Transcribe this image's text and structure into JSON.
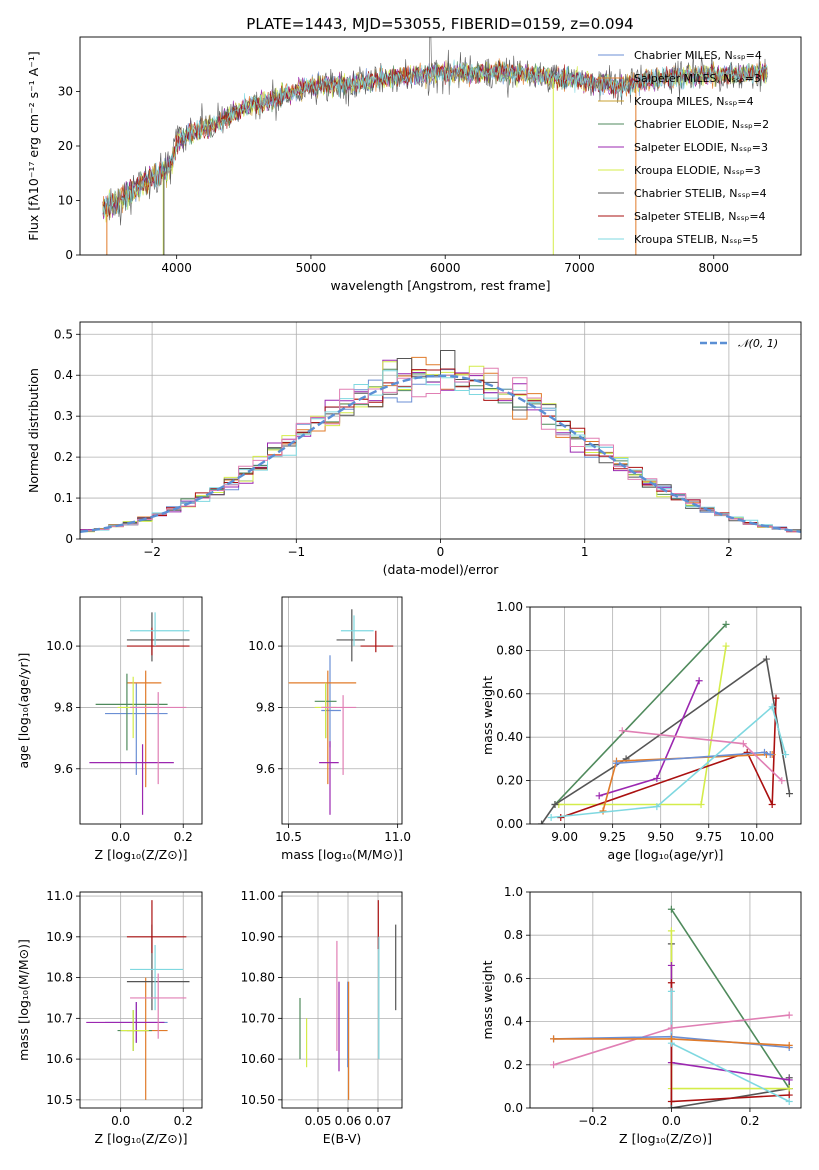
{
  "title": "PLATE=1443, MJD=53055, FIBERID=0159, z=0.094",
  "colors": [
    "#6b8fd4",
    "#e07b2a",
    "#4f8a5c",
    "#9b27b0",
    "#d4ec4a",
    "#555555",
    "#aa1010",
    "#7fd8e0",
    "#e07fb4",
    "#c8a030"
  ],
  "chart_data": [
    {
      "id": "spectrum",
      "type": "line",
      "xlabel": "wavelength [Angstrom, rest frame]",
      "ylabel": "Flux [fλ10⁻¹⁷ erg cm⁻² s⁻¹ A⁻¹]",
      "xlim": [
        3280,
        8650
      ],
      "ylim": [
        0,
        40
      ],
      "xticks": [
        4000,
        5000,
        6000,
        7000,
        8000
      ],
      "yticks": [
        0,
        10,
        20,
        30
      ],
      "continuum": {
        "x": [
          3450,
          3600,
          3800,
          3950,
          4000,
          4100,
          4300,
          4500,
          4700,
          5000,
          5300,
          5600,
          6000,
          6500,
          7000,
          7300,
          7600,
          8000,
          8400
        ],
        "y": [
          8.5,
          10.5,
          14,
          16,
          20.5,
          22.5,
          24,
          27,
          28.5,
          31,
          31.5,
          32.5,
          33.5,
          33.5,
          32,
          31,
          32.5,
          33,
          33.5
        ]
      },
      "legend": [
        "Chabrier MILES, Nₛₛₚ=4",
        "Salpeter MILES, Nₛₛₚ=3",
        "Kroupa MILES, Nₛₛₚ=4",
        "Chabrier ELODIE, Nₛₛₚ=2",
        "Salpeter ELODIE, Nₛₛₚ=3",
        "Kroupa ELODIE, Nₛₛₚ=3",
        "Chabrier STELIB, Nₛₛₚ=4",
        "Salpeter STELIB, Nₛₛₚ=4",
        "Kroupa STELIB, Nₛₛₚ=5"
      ],
      "legend_colors": [
        "#6b8fd4",
        "#e07b2a",
        "#c8a030",
        "#4f8a5c",
        "#9b27b0",
        "#d4ec4a",
        "#555555",
        "#aa1010",
        "#7fd8e0"
      ],
      "legend_position": "top-right",
      "grid": false
    },
    {
      "id": "residuals",
      "type": "histogram",
      "xlabel": "(data-model)/error",
      "ylabel": "Normed distribution",
      "xlim": [
        -2.5,
        2.5
      ],
      "ylim": [
        0,
        0.53
      ],
      "xticks": [
        -2,
        -1,
        0,
        1,
        2
      ],
      "yticks": [
        0.0,
        0.1,
        0.2,
        0.3,
        0.4,
        0.5
      ],
      "bin_width": 0.1,
      "reference_curve": "N(0,1)",
      "legend": [
        "𝒩(0, 1)"
      ],
      "legend_position": "top-right",
      "grid": true
    },
    {
      "id": "age-vs-Z",
      "type": "errorbar",
      "xlabel": "Z [log₁₀(Z/Z⊙)]",
      "ylabel": "age  [log₁₀(age/yr)]",
      "xlim": [
        -0.13,
        0.26
      ],
      "ylim": [
        9.42,
        10.16
      ],
      "xticks": [
        0.0,
        0.2
      ],
      "yticks": [
        9.6,
        9.8,
        10.0
      ],
      "grid": true
    },
    {
      "id": "age-vs-mass",
      "type": "errorbar",
      "xlabel": "mass [log₁₀(M/M⊙)]",
      "xlim": [
        10.47,
        11.02
      ],
      "ylim": [
        9.42,
        10.16
      ],
      "xticks": [
        10.5,
        11.0
      ],
      "yticks": [
        9.6,
        9.8,
        10.0
      ],
      "grid": true
    },
    {
      "id": "weight-vs-age",
      "type": "line",
      "xlabel": "age  [log₁₀(age/yr)]",
      "ylabel": "mass weight",
      "xlim": [
        8.82,
        10.23
      ],
      "ylim": [
        0,
        1
      ],
      "xticks": [
        9.0,
        9.25,
        9.5,
        9.75,
        10.0
      ],
      "yticks": [
        0.0,
        0.2,
        0.4,
        0.6,
        0.8,
        1.0
      ],
      "grid": true,
      "series": [
        {
          "color": "#4f8a5c",
          "x": [
            8.95,
            9.84
          ],
          "y": [
            0.09,
            0.92
          ]
        },
        {
          "color": "#d4ec4a",
          "x": [
            8.97,
            9.71,
            9.84
          ],
          "y": [
            0.09,
            0.09,
            0.82
          ]
        },
        {
          "color": "#555555",
          "x": [
            8.88,
            8.95,
            9.32,
            10.05,
            10.17
          ],
          "y": [
            0.0,
            0.09,
            0.3,
            0.76,
            0.14
          ]
        },
        {
          "color": "#9b27b0",
          "x": [
            9.18,
            9.48,
            9.7
          ],
          "y": [
            0.13,
            0.21,
            0.66
          ]
        },
        {
          "color": "#aa1010",
          "x": [
            8.98,
            9.95,
            10.08,
            10.1
          ],
          "y": [
            0.03,
            0.33,
            0.09,
            0.58
          ]
        },
        {
          "color": "#e07b2a",
          "x": [
            9.2,
            9.27,
            10.05,
            10.08
          ],
          "y": [
            0.06,
            0.29,
            0.32,
            0.32
          ]
        },
        {
          "color": "#6b8fd4",
          "x": [
            9.27,
            10.04,
            10.07
          ],
          "y": [
            0.28,
            0.33,
            0.32
          ]
        },
        {
          "color": "#7fd8e0",
          "x": [
            8.93,
            9.48,
            10.08,
            10.15
          ],
          "y": [
            0.03,
            0.08,
            0.54,
            0.32
          ]
        },
        {
          "color": "#e07fb4",
          "x": [
            9.3,
            9.93,
            10.13
          ],
          "y": [
            0.43,
            0.37,
            0.2
          ]
        }
      ]
    },
    {
      "id": "mass-vs-Z",
      "type": "errorbar",
      "xlabel": "Z [log₁₀(Z/Z⊙)]",
      "ylabel": "mass [log₁₀(M/M⊙)]",
      "xlim": [
        -0.13,
        0.26
      ],
      "ylim": [
        10.48,
        11.01
      ],
      "xticks": [
        0.0,
        0.2
      ],
      "yticks": [
        10.5,
        10.6,
        10.7,
        10.8,
        10.9,
        11.0
      ],
      "grid": true
    },
    {
      "id": "mass-vs-ebv",
      "type": "errorbar",
      "xlabel": "E(B-V)",
      "xlim": [
        0.038,
        0.078
      ],
      "ylim": [
        10.48,
        11.01
      ],
      "xticks": [
        0.05,
        0.06,
        0.07
      ],
      "yticks": [
        10.5,
        10.6,
        10.7,
        10.8,
        10.9,
        11.0
      ],
      "grid": true
    },
    {
      "id": "weight-vs-Z",
      "type": "line",
      "xlabel": "Z [log₁₀(Z/Z⊙)]",
      "ylabel": "mass weight",
      "xlim": [
        -0.36,
        0.33
      ],
      "ylim": [
        0,
        1
      ],
      "xticks": [
        -0.2,
        0.0,
        0.2
      ],
      "yticks": [
        0.0,
        0.2,
        0.4,
        0.6,
        0.8,
        1.0
      ],
      "grid": true,
      "series": [
        {
          "color": "#4f8a5c",
          "x": [
            0.0,
            0.3
          ],
          "y": [
            0.92,
            0.09
          ]
        },
        {
          "color": "#555555",
          "x": [
            0.0,
            0.0,
            0.3,
            0.3
          ],
          "y": [
            0.76,
            0.0,
            0.09,
            0.14
          ]
        },
        {
          "color": "#d4ec4a",
          "x": [
            0.0,
            0.0,
            0.3
          ],
          "y": [
            0.82,
            0.09,
            0.09
          ]
        },
        {
          "color": "#9b27b0",
          "x": [
            0.0,
            0.0,
            0.3
          ],
          "y": [
            0.66,
            0.21,
            0.13
          ]
        },
        {
          "color": "#aa1010",
          "x": [
            0.0,
            0.0,
            0.3
          ],
          "y": [
            0.58,
            0.03,
            0.06
          ]
        },
        {
          "color": "#7fd8e0",
          "x": [
            0.0,
            0.0,
            0.3
          ],
          "y": [
            0.54,
            0.3,
            0.03
          ]
        },
        {
          "color": "#e07fb4",
          "x": [
            -0.3,
            0.0,
            0.3
          ],
          "y": [
            0.2,
            0.37,
            0.43
          ]
        },
        {
          "color": "#6b8fd4",
          "x": [
            -0.3,
            0.0,
            0.3
          ],
          "y": [
            0.32,
            0.33,
            0.28
          ]
        },
        {
          "color": "#e07b2a",
          "x": [
            -0.3,
            0.0,
            0.3
          ],
          "y": [
            0.32,
            0.32,
            0.29
          ]
        }
      ]
    }
  ],
  "errorbars": {
    "age_Z": [
      {
        "c": "#6b8fd4",
        "x": 0.05,
        "xe": [
          0.1,
          0.1
        ],
        "y": 9.78,
        "ye": [
          0.2,
          0.1
        ]
      },
      {
        "c": "#e07b2a",
        "x": 0.08,
        "xe": [
          0.06,
          0.05
        ],
        "y": 9.88,
        "ye": [
          0.34,
          0.04
        ]
      },
      {
        "c": "#4f8a5c",
        "x": 0.02,
        "xe": [
          0.1,
          0.13
        ],
        "y": 9.81,
        "ye": [
          0.15,
          0.1
        ]
      },
      {
        "c": "#9b27b0",
        "x": 0.07,
        "xe": [
          0.17,
          0.1
        ],
        "y": 9.62,
        "ye": [
          0.17,
          0.06
        ]
      },
      {
        "c": "#d4ec4a",
        "x": 0.04,
        "xe": [
          0.05,
          0.06
        ],
        "y": 9.8,
        "ye": [
          0.1,
          0.1
        ]
      },
      {
        "c": "#555555",
        "x": 0.1,
        "xe": [
          0.08,
          0.12
        ],
        "y": 10.02,
        "ye": [
          0.07,
          0.09
        ]
      },
      {
        "c": "#aa1010",
        "x": 0.1,
        "xe": [
          0.08,
          0.12
        ],
        "y": 10.0,
        "ye": [
          0.03,
          0.06
        ]
      },
      {
        "c": "#7fd8e0",
        "x": 0.11,
        "xe": [
          0.08,
          0.11
        ],
        "y": 10.05,
        "ye": [
          0.05,
          0.06
        ]
      },
      {
        "c": "#e07fb4",
        "x": 0.12,
        "xe": [
          0.09,
          0.09
        ],
        "y": 9.8,
        "ye": [
          0.25,
          0.05
        ]
      }
    ],
    "age_mass": [
      {
        "c": "#6b8fd4",
        "x": 10.69,
        "xe": [
          0.04,
          0.05
        ],
        "y": 9.79,
        "ye": [
          0.12,
          0.18
        ]
      },
      {
        "c": "#e07b2a",
        "x": 10.68,
        "xe": [
          0.18,
          0.13
        ],
        "y": 9.88,
        "ye": [
          0.33,
          0.04
        ]
      },
      {
        "c": "#4f8a5c",
        "x": 10.67,
        "xe": [
          0.05,
          0.05
        ],
        "y": 9.82,
        "ye": [
          0.12,
          0.06
        ]
      },
      {
        "c": "#9b27b0",
        "x": 10.69,
        "xe": [
          0.05,
          0.04
        ],
        "y": 9.62,
        "ye": [
          0.17,
          0.07
        ]
      },
      {
        "c": "#d4ec4a",
        "x": 10.67,
        "xe": [
          0.05,
          0.05
        ],
        "y": 9.8,
        "ye": [
          0.1,
          0.08
        ]
      },
      {
        "c": "#555555",
        "x": 10.79,
        "xe": [
          0.07,
          0.06
        ],
        "y": 10.02,
        "ye": [
          0.07,
          0.1
        ]
      },
      {
        "c": "#aa1010",
        "x": 10.9,
        "xe": [
          0.07,
          0.08
        ],
        "y": 10.0,
        "ye": [
          0.02,
          0.05
        ]
      },
      {
        "c": "#7fd8e0",
        "x": 10.8,
        "xe": [
          0.06,
          0.09
        ],
        "y": 10.05,
        "ye": [
          0.05,
          0.05
        ]
      },
      {
        "c": "#e07fb4",
        "x": 10.75,
        "xe": [
          0.1,
          0.06
        ],
        "y": 9.8,
        "ye": [
          0.22,
          0.04
        ]
      }
    ],
    "mass_Z": [
      {
        "c": "#6b8fd4",
        "x": 0.05,
        "xe": [
          0.1,
          0.1
        ],
        "y": 10.69,
        "ye": [
          0.05,
          0.05
        ]
      },
      {
        "c": "#e07b2a",
        "x": 0.08,
        "xe": [
          0.06,
          0.07
        ],
        "y": 10.67,
        "ye": [
          0.17,
          0.13
        ]
      },
      {
        "c": "#4f8a5c",
        "x": 0.04,
        "xe": [
          0.05,
          0.06
        ],
        "y": 10.67,
        "ye": [
          0.05,
          0.05
        ]
      },
      {
        "c": "#9b27b0",
        "x": 0.05,
        "xe": [
          0.16,
          0.09
        ],
        "y": 10.69,
        "ye": [
          0.05,
          0.05
        ]
      },
      {
        "c": "#d4ec4a",
        "x": 0.04,
        "xe": [
          0.04,
          0.05
        ],
        "y": 10.67,
        "ye": [
          0.05,
          0.05
        ]
      },
      {
        "c": "#555555",
        "x": 0.1,
        "xe": [
          0.08,
          0.12
        ],
        "y": 10.79,
        "ye": [
          0.07,
          0.14
        ]
      },
      {
        "c": "#aa1010",
        "x": 0.1,
        "xe": [
          0.08,
          0.11
        ],
        "y": 10.9,
        "ye": [
          0.04,
          0.09
        ]
      },
      {
        "c": "#7fd8e0",
        "x": 0.11,
        "xe": [
          0.08,
          0.09
        ],
        "y": 10.82,
        "ye": [
          0.1,
          0.06
        ]
      },
      {
        "c": "#e07fb4",
        "x": 0.12,
        "xe": [
          0.09,
          0.09
        ],
        "y": 10.75,
        "ye": [
          0.1,
          0.06
        ]
      }
    ],
    "mass_ebv": [
      {
        "c": "#4f8a5c",
        "x": 0.044,
        "y": 10.67,
        "ye": [
          0.07,
          0.08
        ]
      },
      {
        "c": "#d4ec4a",
        "x": 0.0462,
        "y": 10.6,
        "ye": [
          0.02,
          0.1
        ]
      },
      {
        "c": "#e07fb4",
        "x": 0.0563,
        "y": 10.78,
        "ye": [
          0.16,
          0.11
        ]
      },
      {
        "c": "#9b27b0",
        "x": 0.057,
        "y": 10.7,
        "ye": [
          0.13,
          0.09
        ]
      },
      {
        "c": "#6b8fd4",
        "x": 0.0599,
        "y": 10.7,
        "ye": [
          0.12,
          0.09
        ]
      },
      {
        "c": "#e07b2a",
        "x": 0.0602,
        "y": 10.67,
        "ye": [
          0.17,
          0.12
        ]
      },
      {
        "c": "#aa1010",
        "x": 0.0701,
        "y": 10.95,
        "ye": [
          0.08,
          0.04
        ]
      },
      {
        "c": "#7fd8e0",
        "x": 0.0703,
        "y": 10.84,
        "ye": [
          0.24,
          0.06
        ]
      },
      {
        "c": "#555555",
        "x": 0.0759,
        "y": 10.83,
        "ye": [
          0.11,
          0.1
        ]
      }
    ]
  }
}
